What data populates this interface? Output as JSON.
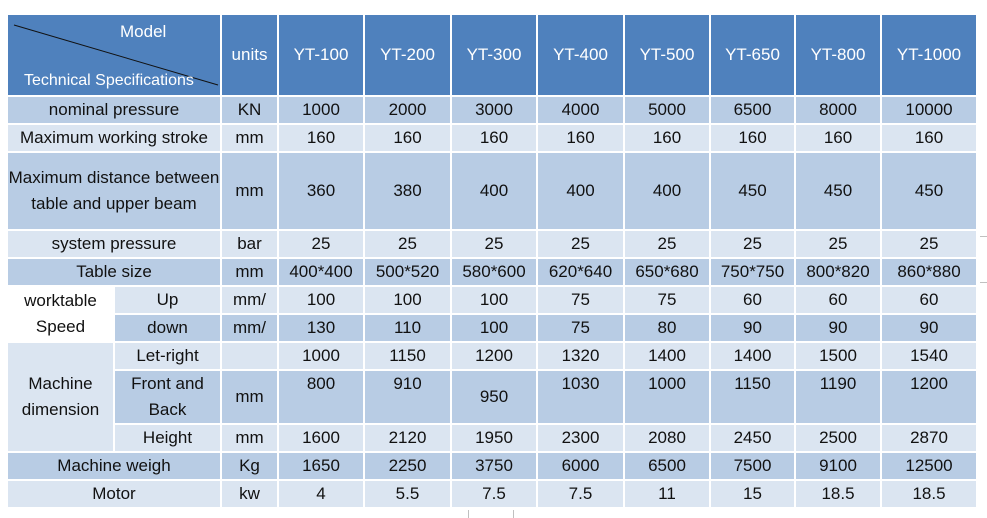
{
  "header": {
    "model_label": "Model",
    "spec_label": "Technical Specifications",
    "units_label": "units",
    "models": [
      "YT-100",
      "YT-200",
      "YT-300",
      "YT-400",
      "YT-500",
      "YT-650",
      "YT-800",
      "YT-1000"
    ]
  },
  "rows": {
    "nominal_pressure": {
      "label": "nominal pressure",
      "unit": "KN",
      "values": [
        "1000",
        "2000",
        "3000",
        "4000",
        "5000",
        "6500",
        "8000",
        "10000"
      ]
    },
    "max_stroke": {
      "label": "Maximum working stroke",
      "unit": "mm",
      "values": [
        "160",
        "160",
        "160",
        "160",
        "160",
        "160",
        "160",
        "160"
      ]
    },
    "max_distance": {
      "label": "Maximum distance between table and upper beam",
      "unit": "mm",
      "values": [
        "360",
        "380",
        "400",
        "400",
        "400",
        "450",
        "450",
        "450"
      ]
    },
    "system_pressure": {
      "label": "system pressure",
      "unit": "bar",
      "values": [
        "25",
        "25",
        "25",
        "25",
        "25",
        "25",
        "25",
        "25"
      ]
    },
    "table_size": {
      "label": "Table size",
      "unit": "mm",
      "values": [
        "400*400",
        "500*520",
        "580*600",
        "620*640",
        "650*680",
        "750*750",
        "800*820",
        "860*880"
      ]
    },
    "worktable_speed": {
      "label": "worktable Speed",
      "up": {
        "label": "Up",
        "unit": "mm/",
        "values": [
          "100",
          "100",
          "100",
          "75",
          "75",
          "60",
          "60",
          "60"
        ]
      },
      "down": {
        "label": "down",
        "unit": "mm/",
        "values": [
          "130",
          "110",
          "100",
          "75",
          "80",
          "90",
          "90",
          "90"
        ]
      }
    },
    "machine_dimension": {
      "label": "Machine dimension",
      "unit": "mm",
      "left_right": {
        "label": "Let-right",
        "values": [
          "1000",
          "1150",
          "1200",
          "1320",
          "1400",
          "1400",
          "1500",
          "1540"
        ]
      },
      "front_back": {
        "label": "Front and Back",
        "values": [
          "800",
          "910",
          "950",
          "1030",
          "1000",
          "1150",
          "1190",
          "1200"
        ]
      },
      "height": {
        "label": "Height",
        "values": [
          "1600",
          "2120",
          "1950",
          "2300",
          "2080",
          "2450",
          "2500",
          "2870"
        ]
      }
    },
    "machine_weight": {
      "label": "Machine weigh",
      "unit": "Kg",
      "values": [
        "1650",
        "2250",
        "3750",
        "6000",
        "6500",
        "7500",
        "9100",
        "12500"
      ]
    },
    "motor": {
      "label": "Motor",
      "unit": "kw",
      "values": [
        "4",
        "5.5",
        "7.5",
        "7.5",
        "11",
        "15",
        "18.5",
        "18.5"
      ]
    }
  }
}
